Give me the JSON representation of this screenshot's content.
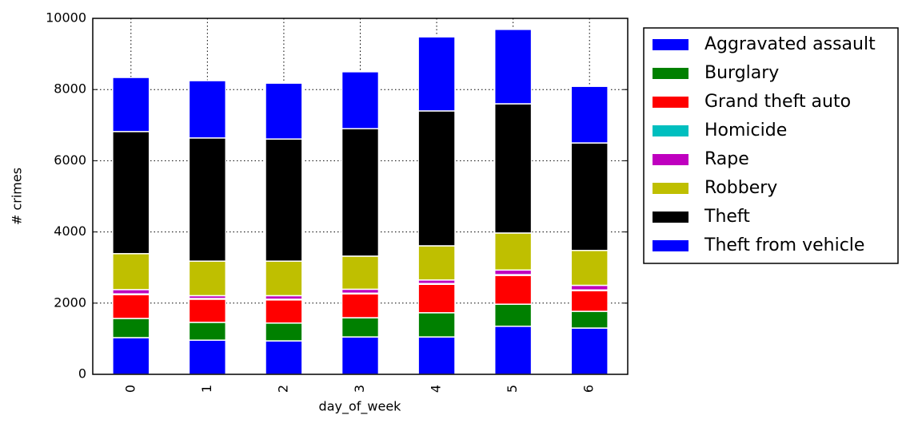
{
  "chart_data": {
    "type": "stacked_bar",
    "xlabel": "day_of_week",
    "ylabel": "# crimes",
    "categories": [
      "0",
      "1",
      "2",
      "3",
      "4",
      "5",
      "6"
    ],
    "series": [
      {
        "name": "Aggravated assault",
        "color": "#0000ff",
        "values": [
          1030,
          960,
          940,
          1050,
          1050,
          1350,
          1300
        ]
      },
      {
        "name": "Burglary",
        "color": "#008000",
        "values": [
          540,
          500,
          500,
          540,
          680,
          620,
          470
        ]
      },
      {
        "name": "Grand theft auto",
        "color": "#ff0000",
        "values": [
          670,
          650,
          650,
          670,
          800,
          810,
          580
        ]
      },
      {
        "name": "Homicide",
        "color": "#00bfbf",
        "values": [
          20,
          20,
          20,
          20,
          20,
          20,
          20
        ]
      },
      {
        "name": "Rape",
        "color": "#bf00bf",
        "values": [
          120,
          80,
          100,
          110,
          100,
          130,
          130
        ]
      },
      {
        "name": "Robbery",
        "color": "#bfbf00",
        "values": [
          1010,
          970,
          970,
          930,
          960,
          1040,
          980
        ]
      },
      {
        "name": "Theft",
        "color": "#000000",
        "values": [
          3430,
          3460,
          3430,
          3580,
          3790,
          3630,
          3020
        ]
      },
      {
        "name": "Theft from vehicle",
        "color": "#0000ff",
        "values": [
          1520,
          1610,
          1570,
          1600,
          2080,
          2090,
          1590
        ]
      }
    ],
    "ylim": [
      0,
      10000
    ],
    "yticks": [
      0,
      2000,
      4000,
      6000,
      8000,
      10000
    ],
    "grid": true,
    "legend": "outside right"
  }
}
